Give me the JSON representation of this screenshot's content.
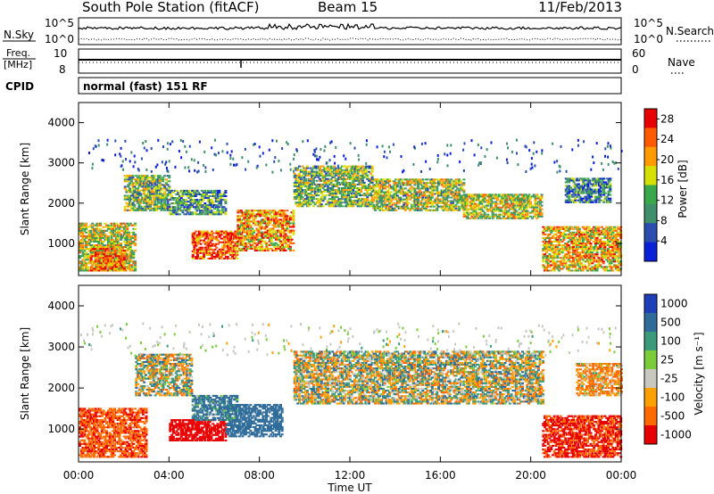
{
  "header": {
    "station": "South Pole Station (fitACF)",
    "beam": "Beam 15",
    "date": "11/Feb/2013"
  },
  "panels": {
    "nsky_label": "N.Sky",
    "nsky_ticks": [
      "10^5",
      "10^0"
    ],
    "nsearch_label": "N.Search",
    "freq_label_1": "Freq.",
    "freq_label_2": "[MHz]",
    "freq_ticks": [
      "10",
      "8"
    ],
    "nave_label": "Nave",
    "nave_ticks": [
      "60",
      "0"
    ],
    "cpid_label": "CPID",
    "cpid_value": "normal (fast) 151 RF"
  },
  "colors": {
    "power_scale": [
      "#0a1fd8",
      "#2a4dae",
      "#3f8f6a",
      "#3aa84a",
      "#d6e000",
      "#ff9a00",
      "#ff5a00",
      "#e80000"
    ],
    "velocity_scale": [
      "#1e3fb8",
      "#2f6c9a",
      "#3a9a7a",
      "#7acc3a",
      "#c8c8c0",
      "#ffa000",
      "#ff6a00",
      "#e80000"
    ],
    "ground_scatter": "#b8b8b8"
  },
  "chart_data": [
    {
      "type": "heatmap",
      "name": "power",
      "ylabel": "Slant Range [km]",
      "xlabel": "Time UT",
      "xlim_hours": [
        0,
        24
      ],
      "ylim": [
        200,
        4500
      ],
      "x_ticks": [
        "00:00",
        "04:00",
        "08:00",
        "12:00",
        "16:00",
        "20:00",
        "00:00"
      ],
      "y_ticks": [
        1000,
        2000,
        3000,
        4000
      ],
      "colorbar": {
        "label": "Power [dB]",
        "ticks": [
          "4",
          "8",
          "12",
          "16",
          "20",
          "24",
          "28"
        ],
        "range": [
          0,
          30
        ]
      },
      "regions": [
        {
          "t0": 0.0,
          "t1": 2.5,
          "r0": 300,
          "r1": 1500,
          "level": 0.55
        },
        {
          "t0": 0.5,
          "t1": 2.0,
          "r0": 300,
          "r1": 900,
          "level": 0.75
        },
        {
          "t0": 2.0,
          "t1": 4.0,
          "r0": 1800,
          "r1": 2700,
          "level": 0.45
        },
        {
          "t0": 4.0,
          "t1": 6.5,
          "r0": 1700,
          "r1": 2300,
          "level": 0.35
        },
        {
          "t0": 5.0,
          "t1": 7.0,
          "r0": 600,
          "r1": 1300,
          "level": 0.85
        },
        {
          "t0": 7.0,
          "t1": 9.5,
          "r0": 800,
          "r1": 1800,
          "level": 0.7
        },
        {
          "t0": 9.5,
          "t1": 13.0,
          "r0": 1900,
          "r1": 2900,
          "level": 0.45
        },
        {
          "t0": 13.0,
          "t1": 17.0,
          "r0": 1800,
          "r1": 2600,
          "level": 0.5
        },
        {
          "t0": 17.0,
          "t1": 20.5,
          "r0": 1600,
          "r1": 2200,
          "level": 0.55
        },
        {
          "t0": 20.5,
          "t1": 24.0,
          "r0": 300,
          "r1": 1400,
          "level": 0.65
        },
        {
          "t0": 21.5,
          "t1": 23.5,
          "r0": 2000,
          "r1": 2600,
          "level": 0.3
        }
      ]
    },
    {
      "type": "heatmap",
      "name": "velocity",
      "ylabel": "Slant Range [km]",
      "xlabel": "Time UT",
      "xlim_hours": [
        0,
        24
      ],
      "ylim": [
        200,
        4500
      ],
      "x_ticks": [
        "00:00",
        "04:00",
        "08:00",
        "12:00",
        "16:00",
        "20:00",
        "00:00"
      ],
      "y_ticks": [
        1000,
        2000,
        3000,
        4000
      ],
      "colorbar": {
        "label": "Velocity [m s⁻¹]",
        "ticks": [
          "1000",
          "500",
          "100",
          "25",
          "-25",
          "-100",
          "-500",
          "-1000"
        ]
      },
      "regions": [
        {
          "t0": 0.0,
          "t1": 3.0,
          "r0": 300,
          "r1": 1500,
          "vel": -450
        },
        {
          "t0": 2.5,
          "t1": 5.0,
          "r0": 1800,
          "r1": 2800,
          "vel": 0
        },
        {
          "t0": 4.0,
          "t1": 6.5,
          "r0": 700,
          "r1": 1200,
          "vel": -700
        },
        {
          "t0": 6.5,
          "t1": 9.0,
          "r0": 800,
          "r1": 1600,
          "vel": 300
        },
        {
          "t0": 5.0,
          "t1": 7.0,
          "r0": 1200,
          "r1": 1800,
          "vel": 150
        },
        {
          "t0": 9.5,
          "t1": 20.5,
          "r0": 1600,
          "r1": 2900,
          "vel": 0
        },
        {
          "t0": 20.5,
          "t1": 24.0,
          "r0": 300,
          "r1": 1300,
          "vel": -550
        },
        {
          "t0": 22.0,
          "t1": 24.0,
          "r0": 1800,
          "r1": 2600,
          "vel": -120
        }
      ]
    }
  ]
}
